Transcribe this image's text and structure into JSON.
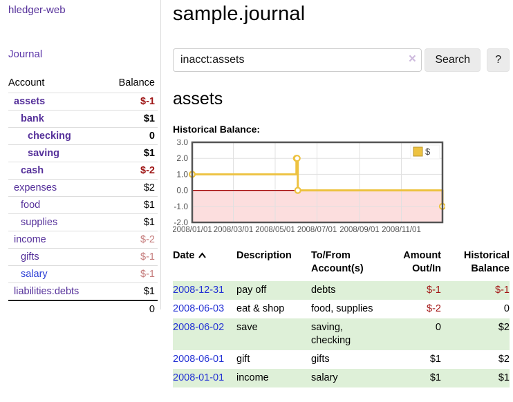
{
  "app": {
    "brand": "hledger-web",
    "nav_journal": "Journal"
  },
  "sidebar": {
    "columns": {
      "account": "Account",
      "balance": "Balance"
    },
    "accounts": [
      {
        "name": "assets",
        "indent": 1,
        "bold": true,
        "balance": "$-1",
        "balance_style": "negative",
        "link_style": "purple"
      },
      {
        "name": "bank",
        "indent": 2,
        "bold": true,
        "balance": "$1",
        "balance_style": "normal",
        "link_style": "purple"
      },
      {
        "name": "checking",
        "indent": 3,
        "bold": true,
        "balance": "0",
        "balance_style": "normal",
        "link_style": "purple"
      },
      {
        "name": "saving",
        "indent": 3,
        "bold": true,
        "balance": "$1",
        "balance_style": "normal",
        "link_style": "purple"
      },
      {
        "name": "cash",
        "indent": 2,
        "bold": true,
        "balance": "$-2",
        "balance_style": "negative",
        "link_style": "purple"
      },
      {
        "name": "expenses",
        "indent": 1,
        "bold": false,
        "balance": "$2",
        "balance_style": "normal",
        "link_style": "purple"
      },
      {
        "name": "food",
        "indent": 2,
        "bold": false,
        "balance": "$1",
        "balance_style": "normal",
        "link_style": "purple"
      },
      {
        "name": "supplies",
        "indent": 2,
        "bold": false,
        "balance": "$1",
        "balance_style": "normal",
        "link_style": "purple"
      },
      {
        "name": "income",
        "indent": 1,
        "bold": false,
        "balance": "$-2",
        "balance_style": "negative-soft",
        "link_style": "purple"
      },
      {
        "name": "gifts",
        "indent": 2,
        "bold": false,
        "balance": "$-1",
        "balance_style": "negative-soft",
        "link_style": "purple"
      },
      {
        "name": "salary",
        "indent": 2,
        "bold": false,
        "balance": "$-1",
        "balance_style": "negative-soft",
        "link_style": "blue"
      },
      {
        "name": "liabilities:debts",
        "indent": 1,
        "bold": false,
        "balance": "$1",
        "balance_style": "normal",
        "link_style": "purple"
      }
    ],
    "total": "0"
  },
  "header": {
    "title": "sample.journal"
  },
  "search": {
    "value": "inacct:assets",
    "clear_icon": "×",
    "button_label": "Search",
    "help_label": "?"
  },
  "account_page": {
    "title": "assets",
    "section_label": "Historical Balance:"
  },
  "chart_data": {
    "type": "line",
    "title": "Historical Balance",
    "xlim": [
      "2008-01-01",
      "2008-12-31"
    ],
    "ylim": [
      -2,
      3
    ],
    "yticks": [
      3,
      2,
      1,
      0,
      -1,
      -2
    ],
    "xticks": [
      "2008/01/01",
      "2008/03/01",
      "2008/05/01",
      "2008/07/01",
      "2008/09/01",
      "2008/11/01"
    ],
    "grid": true,
    "legend_position": "top-right",
    "series": [
      {
        "name": "$",
        "color": "#edc240",
        "style": "step-line-with-markers",
        "points": [
          {
            "date": "2008-01-01",
            "value": 1
          },
          {
            "date": "2008-06-01",
            "value": 2
          },
          {
            "date": "2008-06-02",
            "value": 2
          },
          {
            "date": "2008-06-03",
            "value": 0
          },
          {
            "date": "2008-12-31",
            "value": -1
          }
        ]
      }
    ],
    "negative_region_fill": "#fcdede",
    "zero_line_color": "#a00000",
    "grid_color": "#e0e0e0",
    "border_color": "#545454",
    "tick_text_color": "#545454"
  },
  "register": {
    "columns": {
      "date": "Date",
      "description": "Description",
      "accounts": "To/From Account(s)",
      "amount": "Amount Out/In",
      "balance": "Historical Balance"
    },
    "rows": [
      {
        "date": "2008-12-31",
        "description": "pay off",
        "accounts": "debts",
        "amount": "$-1",
        "balance": "$-1"
      },
      {
        "date": "2008-06-03",
        "description": "eat & shop",
        "accounts": "food, supplies",
        "amount": "$-2",
        "balance": "0"
      },
      {
        "date": "2008-06-02",
        "description": "save",
        "accounts": "saving, checking",
        "amount": "0",
        "balance": "$2"
      },
      {
        "date": "2008-06-01",
        "description": "gift",
        "accounts": "gifts",
        "amount": "$1",
        "balance": "$2"
      },
      {
        "date": "2008-01-01",
        "description": "income",
        "accounts": "salary",
        "amount": "$1",
        "balance": "$1"
      }
    ]
  }
}
